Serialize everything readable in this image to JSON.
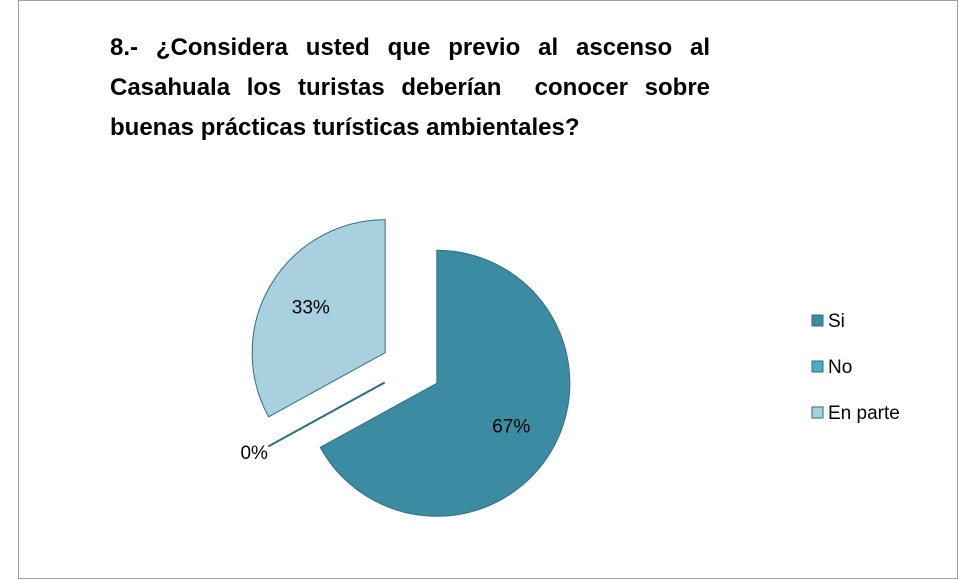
{
  "chart_data": {
    "type": "pie",
    "title": "8.- ¿Considera usted que previo al ascenso al Casahuala los turistas deberían  conocer sobre buenas prácticas turísticas ambientales?",
    "categories": [
      "Si",
      "No",
      "En parte"
    ],
    "values": [
      67,
      0,
      33
    ],
    "value_labels": [
      "67%",
      "0%",
      "33%"
    ],
    "colors": [
      "#3b8ca2",
      "#4bacc6",
      "#a9d0de"
    ],
    "legend": "right"
  }
}
